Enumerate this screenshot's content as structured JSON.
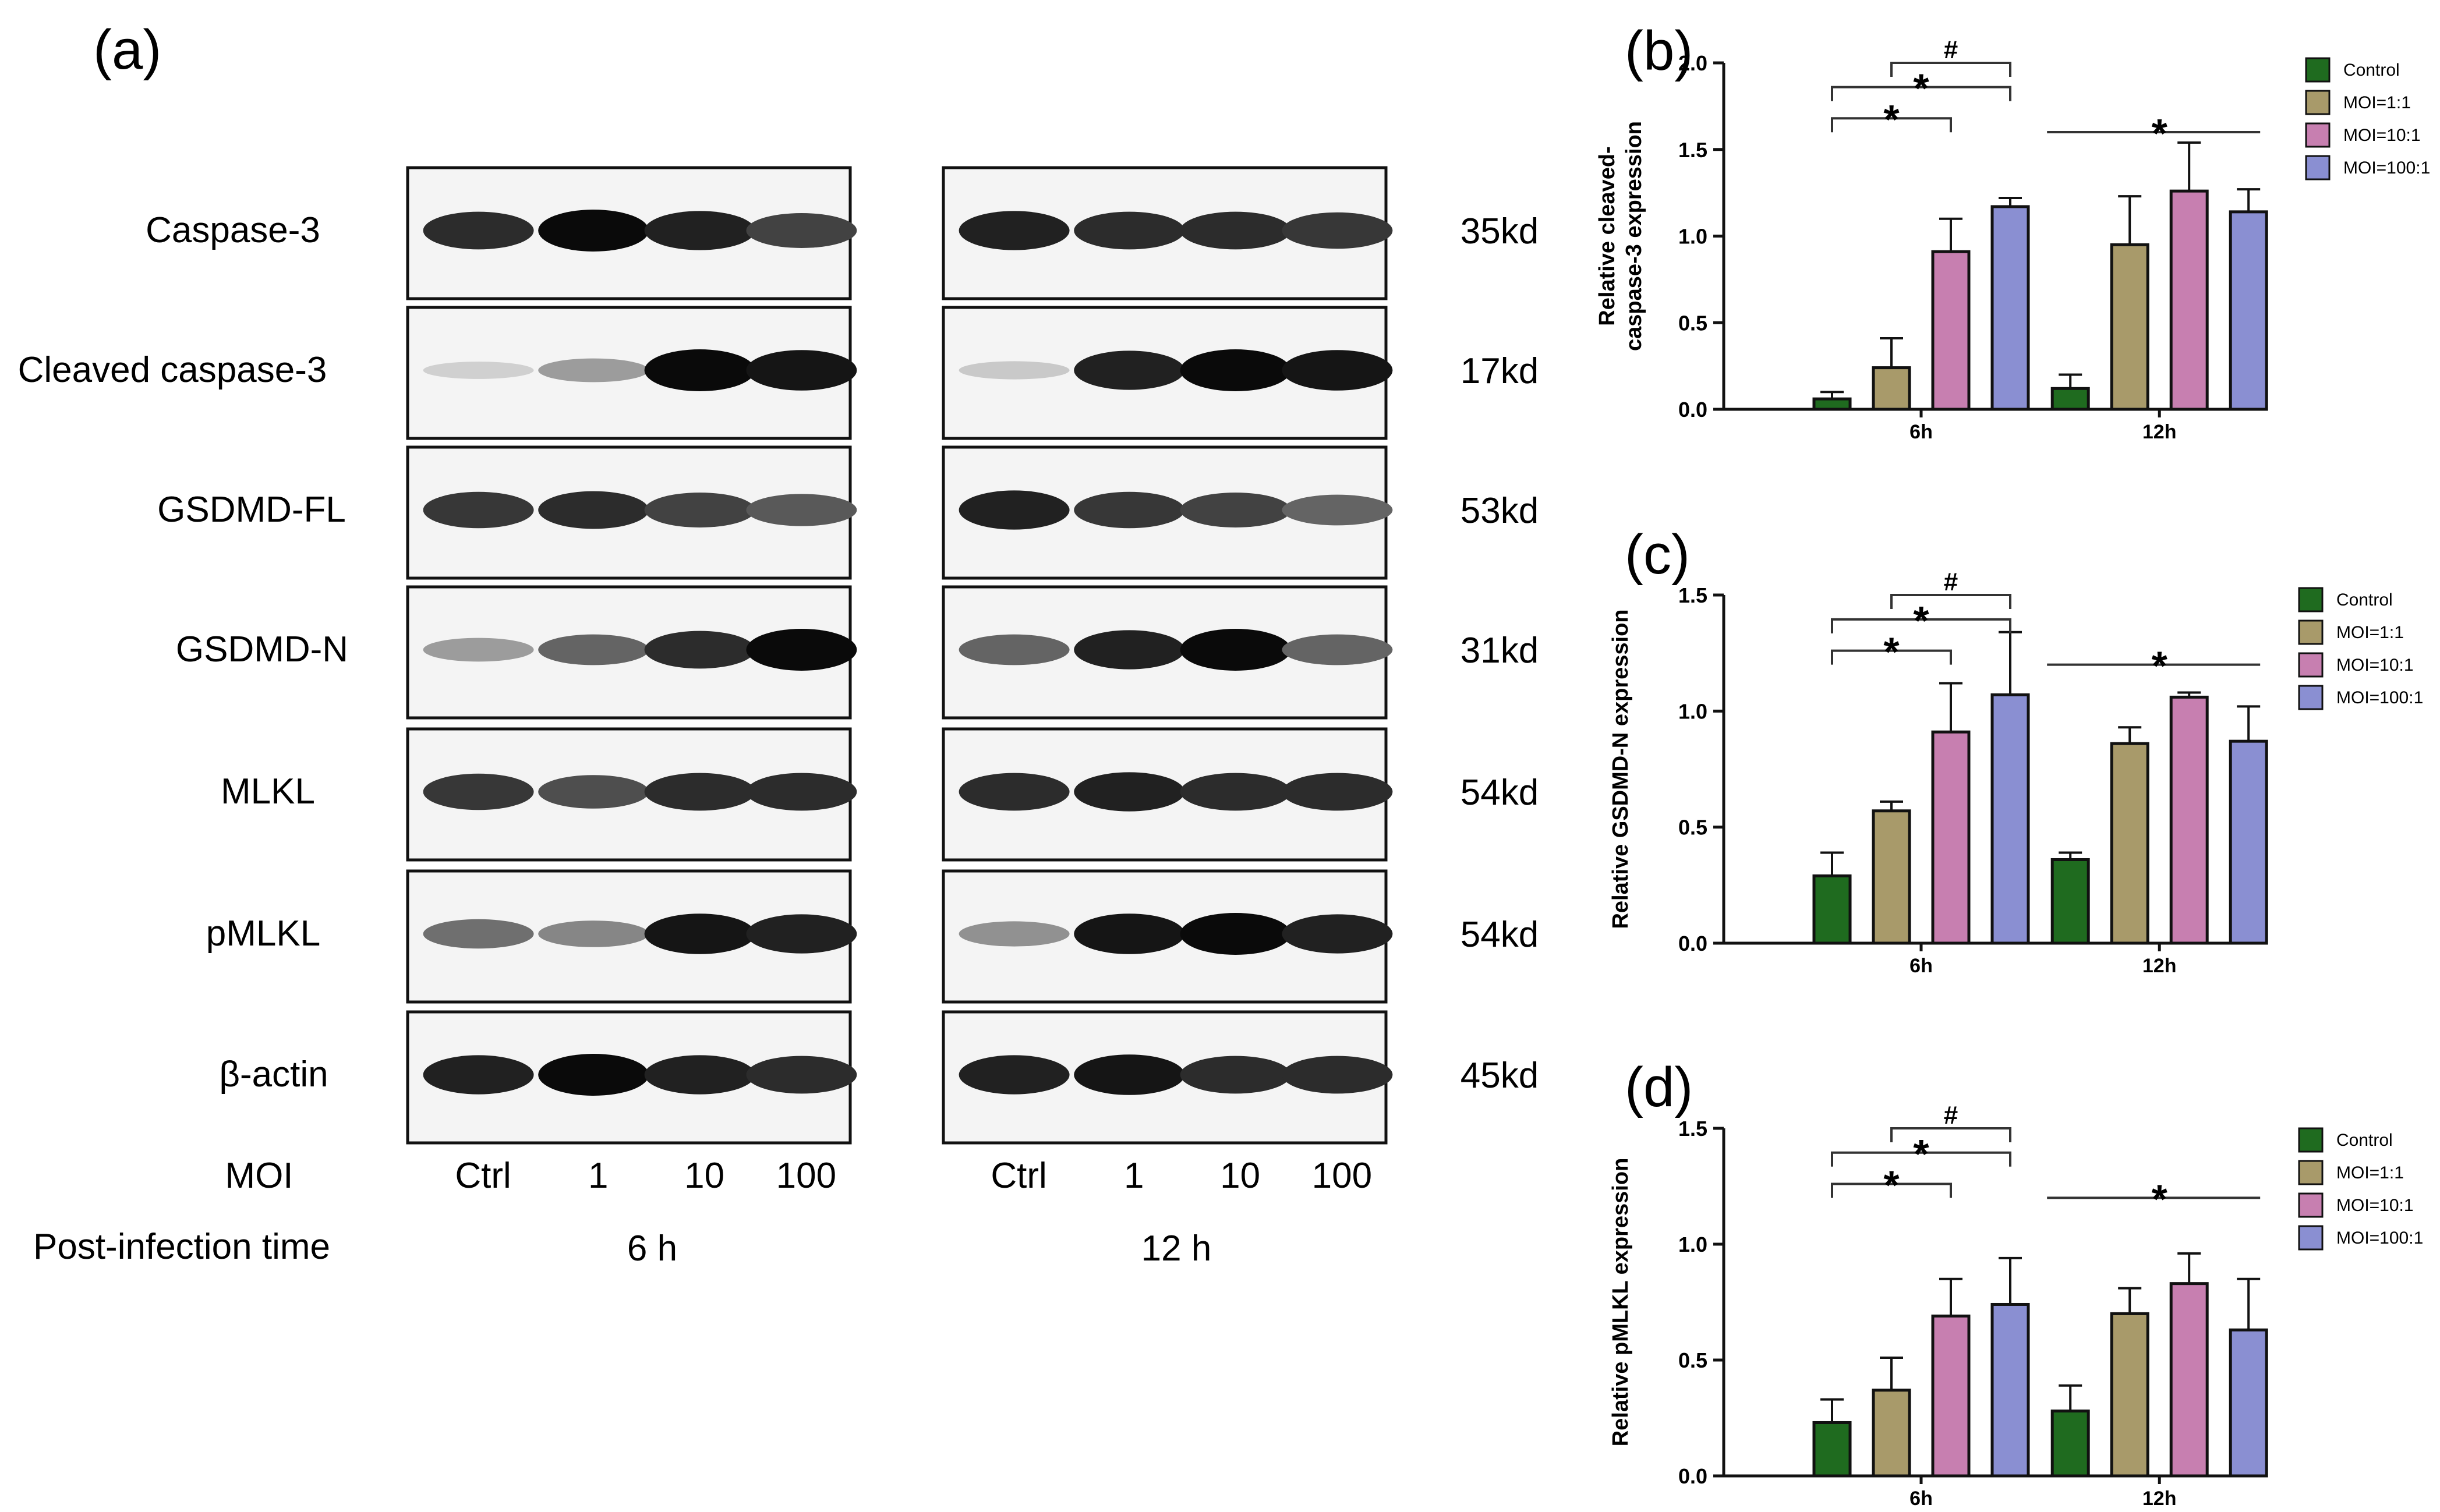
{
  "panel_a": {
    "label": "(a)",
    "rows": [
      {
        "name": "Caspase-3",
        "kd": "35kd"
      },
      {
        "name": "Cleaved caspase-3",
        "kd": "17kd"
      },
      {
        "name": "GSDMD-FL",
        "kd": "53kd"
      },
      {
        "name": "GSDMD-N",
        "kd": "31kd"
      },
      {
        "name": "MLKL",
        "kd": "54kd"
      },
      {
        "name": "pMLKL",
        "kd": "54kd"
      },
      {
        "name": "β-actin",
        "kd": "45kd"
      }
    ],
    "moi_label": "MOI",
    "moi_values": [
      "Ctrl",
      "1",
      "10",
      "100"
    ],
    "time_label": "Post-infection time",
    "times": [
      "6 h",
      "12 h"
    ]
  },
  "legend": {
    "entries": [
      "Control",
      "MOI=1:1",
      "MOI=10:1",
      "MOI=100:1"
    ],
    "colors": [
      "#1f6b1f",
      "#a89a6a",
      "#c77fb0",
      "#8a8fd2"
    ]
  },
  "chart_data": [
    {
      "panel": "(b)",
      "type": "bar",
      "categories": [
        "6h",
        "12h"
      ],
      "ylabel_lines": [
        "Relative cleaved-",
        "caspase-3 expression"
      ],
      "ylim": [
        0,
        2.0
      ],
      "yticks": [
        "0.0",
        "0.5",
        "1.0",
        "1.5",
        "2.0"
      ],
      "series": [
        {
          "name": "Control",
          "values": [
            0.06,
            0.12
          ],
          "err": [
            0.04,
            0.08
          ]
        },
        {
          "name": "MOI=1:1",
          "values": [
            0.24,
            0.95
          ],
          "err": [
            0.17,
            0.28
          ]
        },
        {
          "name": "MOI=10:1",
          "values": [
            0.91,
            1.26
          ],
          "err": [
            0.19,
            0.28
          ]
        },
        {
          "name": "MOI=100:1",
          "values": [
            1.17,
            1.14
          ],
          "err": [
            0.05,
            0.13
          ]
        }
      ],
      "annotations": [
        "*",
        "*",
        "#",
        "*"
      ]
    },
    {
      "panel": "(c)",
      "type": "bar",
      "categories": [
        "6h",
        "12h"
      ],
      "ylabel_lines": [
        "Relative GSDMD-N expression"
      ],
      "ylim": [
        0,
        1.5
      ],
      "yticks": [
        "0.0",
        "0.5",
        "1.0",
        "1.5"
      ],
      "series": [
        {
          "name": "Control",
          "values": [
            0.29,
            0.36
          ],
          "err": [
            0.1,
            0.03
          ]
        },
        {
          "name": "MOI=1:1",
          "values": [
            0.57,
            0.86
          ],
          "err": [
            0.04,
            0.07
          ]
        },
        {
          "name": "MOI=10:1",
          "values": [
            0.91,
            1.06
          ],
          "err": [
            0.21,
            0.02
          ]
        },
        {
          "name": "MOI=100:1",
          "values": [
            1.07,
            0.87
          ],
          "err": [
            0.27,
            0.15
          ]
        }
      ],
      "annotations": [
        "*",
        "*",
        "#",
        "*"
      ]
    },
    {
      "panel": "(d)",
      "type": "bar",
      "categories": [
        "6h",
        "12h"
      ],
      "ylabel_lines": [
        "Relative pMLKL expression"
      ],
      "ylim": [
        0,
        1.5
      ],
      "yticks": [
        "0.0",
        "0.5",
        "1.0",
        "1.5"
      ],
      "series": [
        {
          "name": "Control",
          "values": [
            0.23,
            0.28
          ],
          "err": [
            0.1,
            0.11
          ]
        },
        {
          "name": "MOI=1:1",
          "values": [
            0.37,
            0.7
          ],
          "err": [
            0.14,
            0.11
          ]
        },
        {
          "name": "MOI=10:1",
          "values": [
            0.69,
            0.83
          ],
          "err": [
            0.16,
            0.13
          ]
        },
        {
          "name": "MOI=100:1",
          "values": [
            0.74,
            0.63
          ],
          "err": [
            0.2,
            0.22
          ]
        }
      ],
      "annotations": [
        "*",
        "*",
        "#",
        "*"
      ]
    }
  ]
}
